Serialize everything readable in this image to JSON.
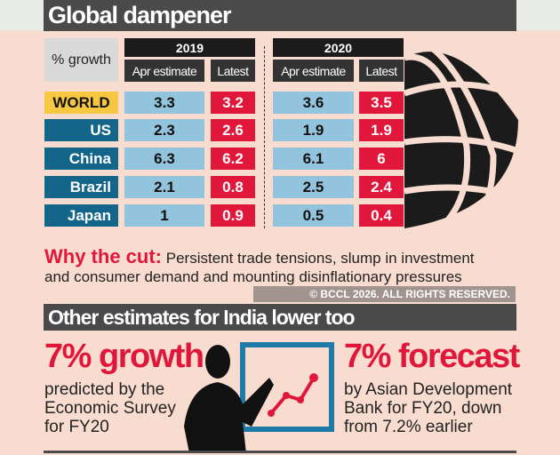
{
  "title": "Global dampener",
  "table": {
    "corner": "% growth",
    "years": [
      "2019",
      "2020"
    ],
    "subheaders": [
      "Apr estimate",
      "Latest"
    ],
    "rows": [
      {
        "country": "WORLD",
        "v2019_apr": "3.3",
        "v2019_latest": "3.2",
        "v2020_apr": "3.6",
        "v2020_latest": "3.5"
      },
      {
        "country": "US",
        "v2019_apr": "2.3",
        "v2019_latest": "2.6",
        "v2020_apr": "1.9",
        "v2020_latest": "1.9"
      },
      {
        "country": "China",
        "v2019_apr": "6.3",
        "v2019_latest": "6.2",
        "v2020_apr": "6.1",
        "v2020_latest": "6"
      },
      {
        "country": "Brazil",
        "v2019_apr": "2.1",
        "v2019_latest": "0.8",
        "v2020_apr": "2.5",
        "v2020_latest": "2.4"
      },
      {
        "country": "Japan",
        "v2019_apr": "1",
        "v2019_latest": "0.9",
        "v2020_apr": "0.5",
        "v2020_latest": "0.4"
      }
    ]
  },
  "why": {
    "label": "Why the cut:",
    "line1": "Persistent trade tensions, slump in investment",
    "line2": "and consumer demand and mounting disinflationary pressures"
  },
  "india": {
    "title": "Other estimates for India lower too",
    "left": {
      "headline": "7% growth",
      "lines": [
        "predicted by the",
        "Economic Survey",
        "for FY20"
      ]
    },
    "right": {
      "headline": "7% forecast",
      "lines": [
        "by Asian Development",
        "Bank for FY20, down",
        "from 7.2% earlier"
      ]
    }
  },
  "watermark": "© BCCL 2026. ALL RIGHTS RESERVED.",
  "colors": {
    "background": "#f8dccf",
    "bar": "#4a4a4a",
    "label": "#14658a",
    "world": "#f6c842",
    "apr": "#93c4de",
    "latest": "#e0173a"
  }
}
